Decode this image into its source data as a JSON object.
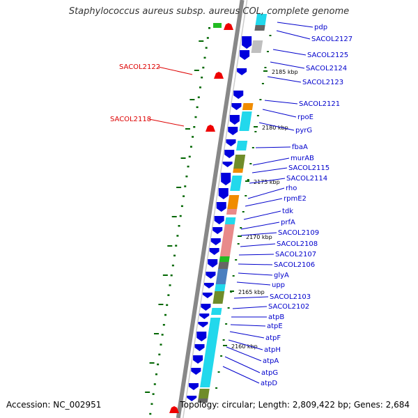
{
  "title": "Staphylococcus aureus subsp. aureus COL, complete genome",
  "accession": "Accession: NC_002951",
  "topology": "Topology: circular; Length: 2,809,422 bp; Genes: 2,684",
  "colors": {
    "forward_gene": "#0000dd",
    "reverse_gene_cyan": "#22d8ec",
    "reverse_gene_gray": "#bfbfbf",
    "orange": "#f08c00",
    "olive": "#6f8c2a",
    "pink": "#e88a8a",
    "steel": "#4a7fbf",
    "green": "#22bb22",
    "dark_gray": "#666666",
    "red_marker": "#ee0000",
    "label_blue": "#0000cc",
    "label_red": "#dd0000",
    "backbone": "#888888",
    "dot_green": "#006600"
  },
  "kbp_marks": [
    "2185 kbp",
    "2180 kbp",
    "2175 kbp",
    "2170 kbp",
    "2165 kbp",
    "2160 kbp"
  ],
  "gene_labels": [
    "pdp",
    "SACOL2127",
    "SACOL2125",
    "SACOL2124",
    "SACOL2123",
    "SACOL2121",
    "rpoE",
    "pyrG",
    "fbaA",
    "murAB",
    "SACOL2115",
    "SACOL2114",
    "rho",
    "rpmE2",
    "tdk",
    "prfA",
    "SACOL2109",
    "SACOL2108",
    "SACOL2107",
    "SACOL2106",
    "glyA",
    "upp",
    "SACOL2103",
    "SACOL2102",
    "atpB",
    "atpE",
    "atpF",
    "atpH",
    "atpA",
    "atpG",
    "atpD"
  ],
  "marker_labels": [
    "SACOL2122",
    "SACOL2118"
  ]
}
